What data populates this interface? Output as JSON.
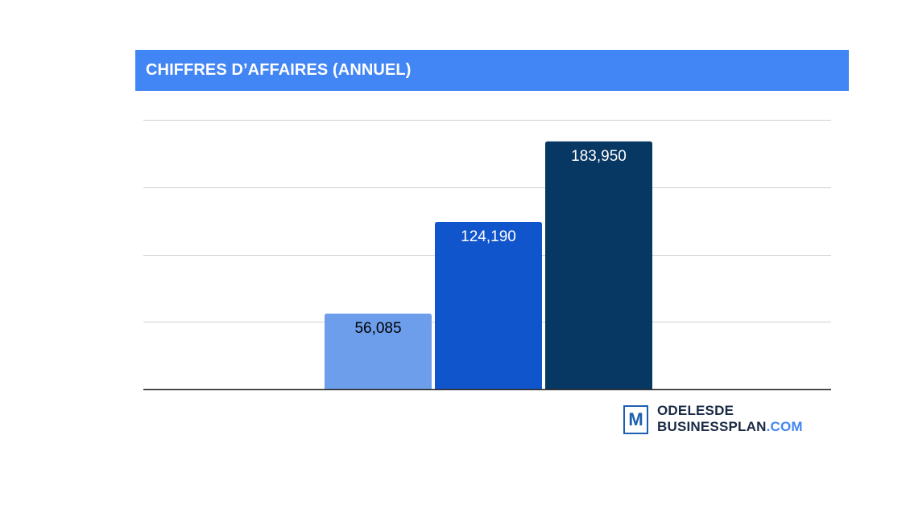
{
  "title": "CHIFFRES D’AFFAIRES (ANNUEL)",
  "chart_data": {
    "type": "bar",
    "title": "CHIFFRES D’AFFAIRES (ANNUEL)",
    "categories": [
      "",
      "",
      ""
    ],
    "values": [
      56085,
      124190,
      183950
    ],
    "value_labels": [
      "56,085",
      "124,190",
      "183,950"
    ],
    "colors": [
      "#6d9eeb",
      "#1155cc",
      "#073763"
    ],
    "label_colors": [
      "#000000",
      "#ffffff",
      "#ffffff"
    ],
    "ylim": [
      0,
      200000
    ],
    "gridlines": [
      50000,
      100000,
      150000,
      200000
    ],
    "grid": true,
    "legend": "none",
    "xlabel": "",
    "ylabel": ""
  },
  "logo": {
    "letter": "M",
    "line1": "ODELESDE",
    "line2_main": "BUSINESSPLAN",
    "line2_suffix": ".COM",
    "color": "#1c5fb0"
  }
}
